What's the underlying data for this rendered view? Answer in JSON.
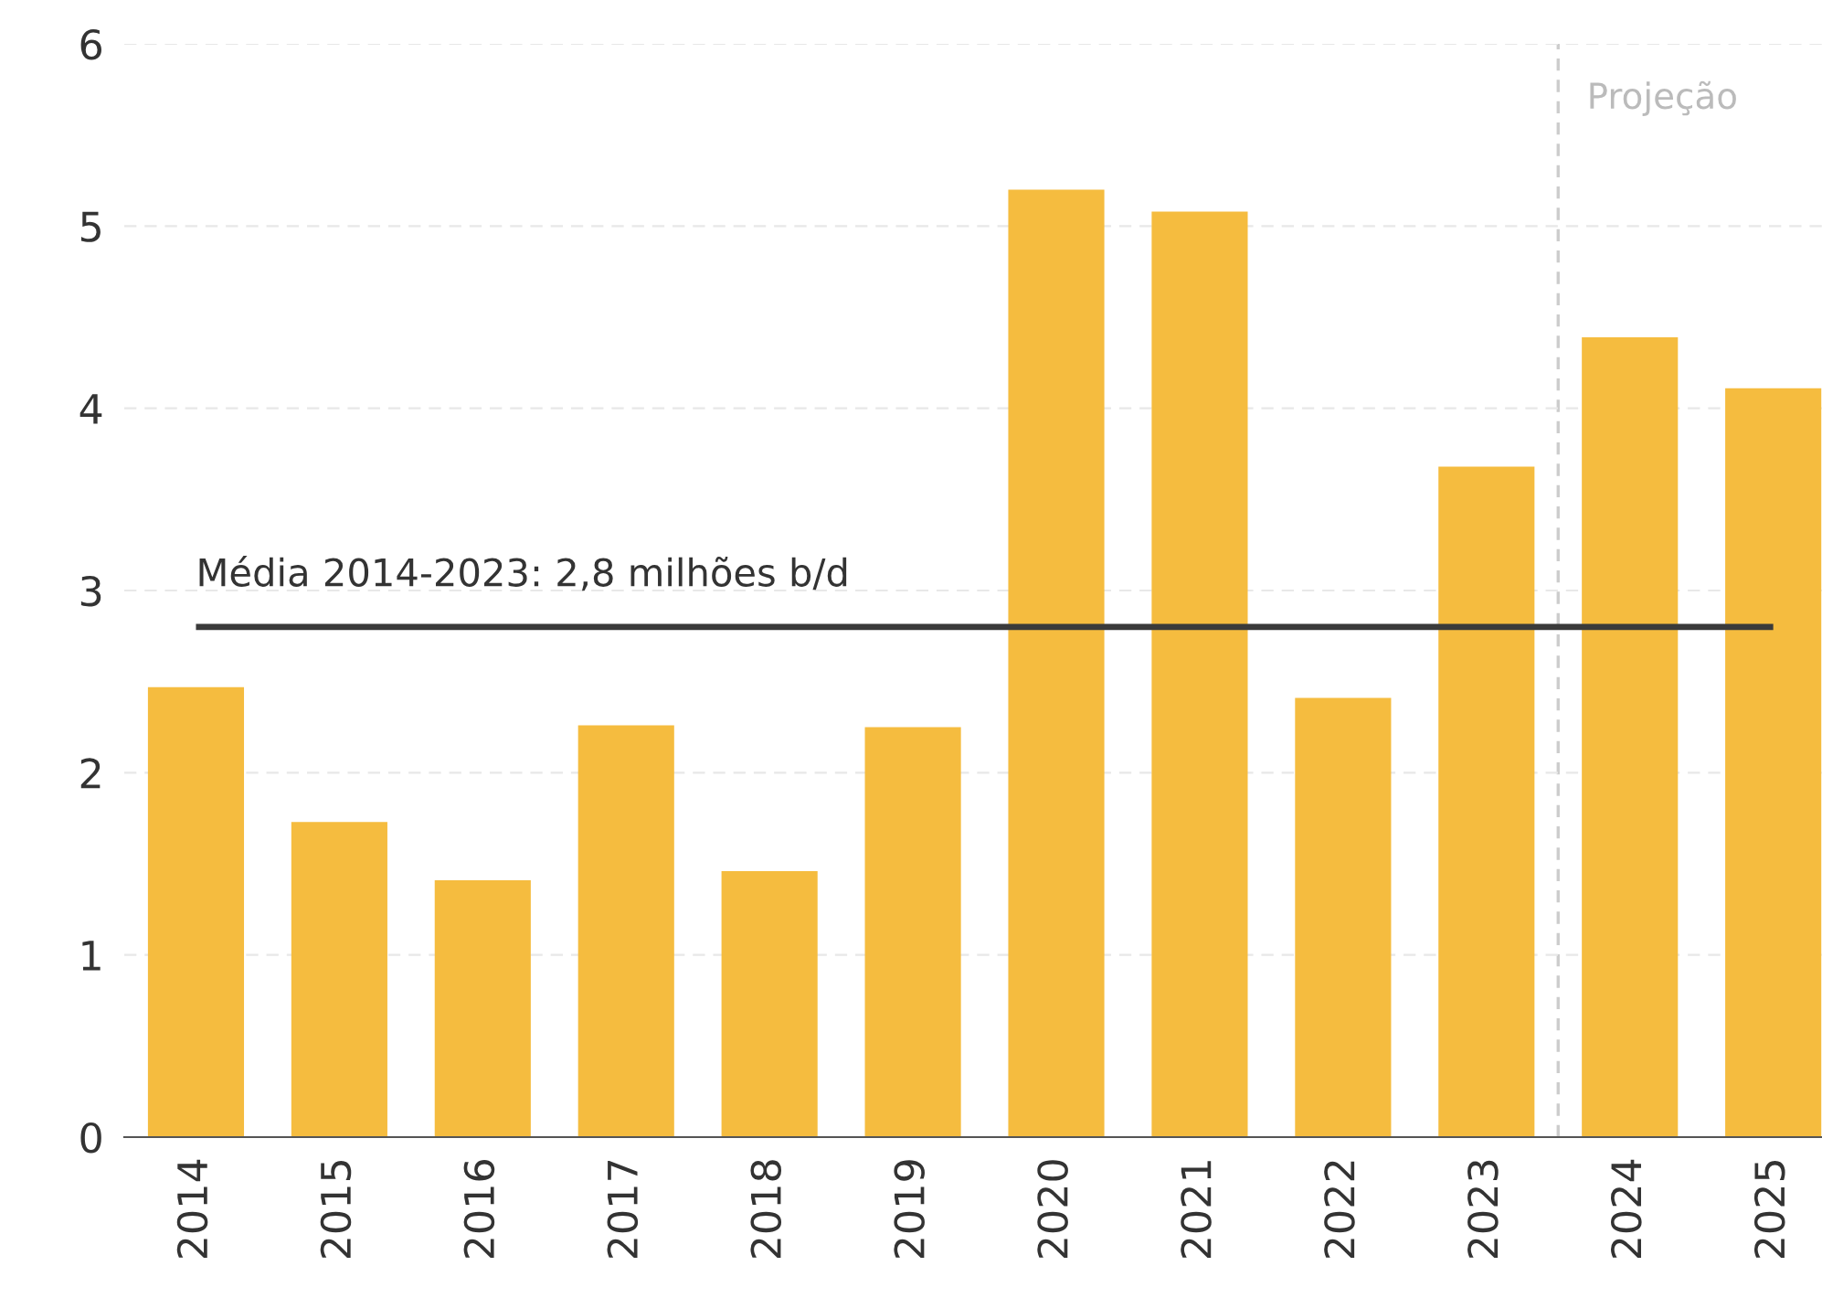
{
  "chart_data": {
    "type": "bar",
    "categories": [
      "2014",
      "2015",
      "2016",
      "2017",
      "2018",
      "2019",
      "2020",
      "2021",
      "2022",
      "2023",
      "2024",
      "2025"
    ],
    "values": [
      2.47,
      1.73,
      1.41,
      2.26,
      1.46,
      2.25,
      5.2,
      5.08,
      2.41,
      3.68,
      4.39,
      4.11
    ],
    "color": "#f5bc3f",
    "ylim": [
      0,
      6
    ],
    "yticks": [
      0,
      1,
      2,
      3,
      4,
      5,
      6
    ],
    "grid": "y",
    "ref_lines": [
      {
        "axis": "y",
        "value": 2.8,
        "label": "Média 2014-2023: 2,8 milhões b/d",
        "color": "#3a3a3a",
        "line_style": "solid"
      },
      {
        "axis": "x",
        "value": "2024",
        "label": "Projeção",
        "color": "#cccccc",
        "line_style": "dashed"
      }
    ]
  }
}
